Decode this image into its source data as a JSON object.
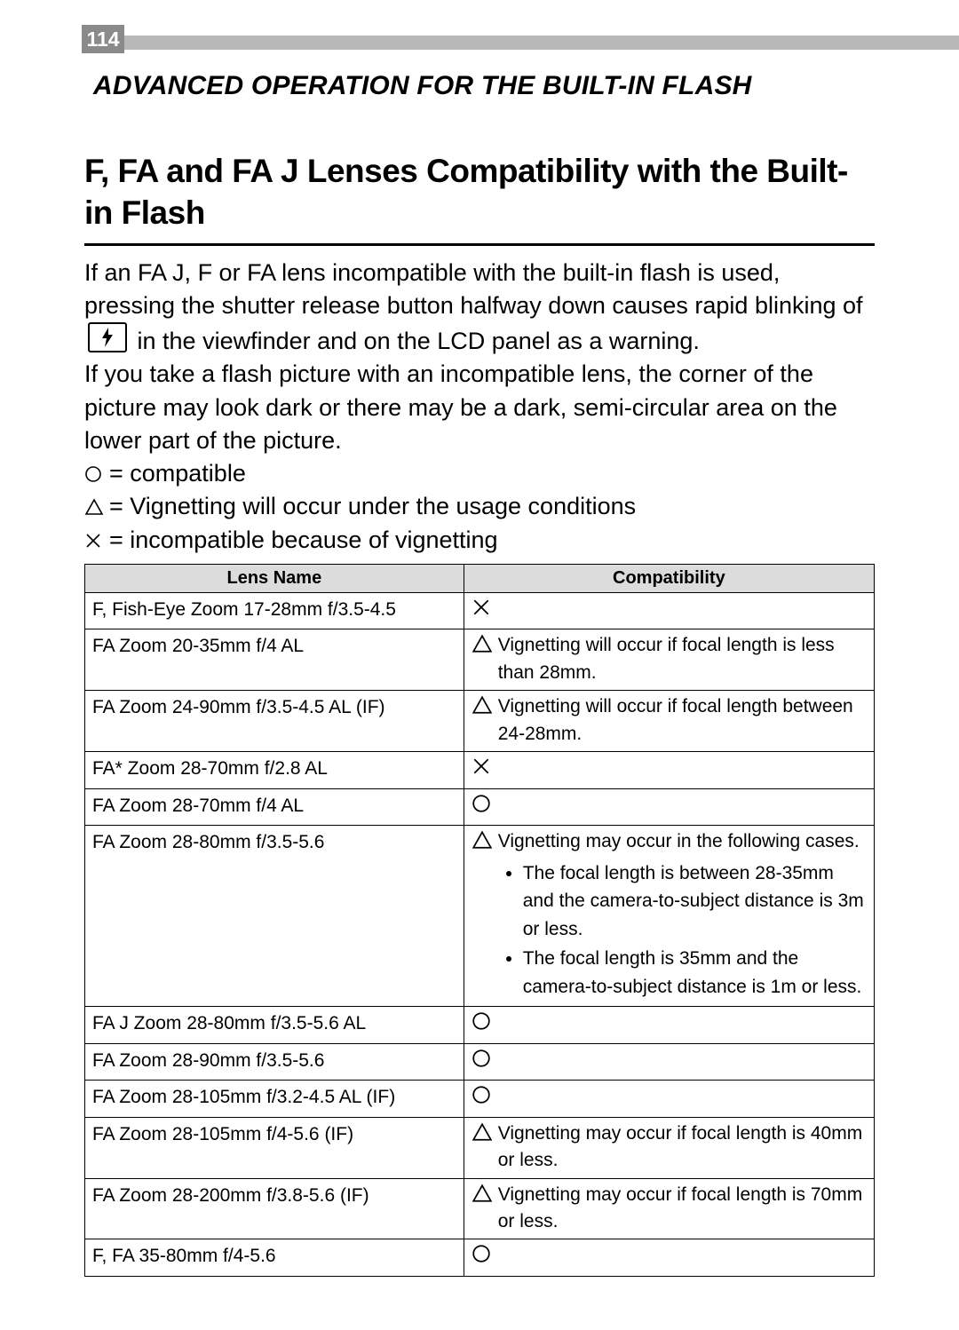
{
  "page_number": "114",
  "section_title": "ADVANCED OPERATION FOR THE BUILT-IN FLASH",
  "main_heading": "F, FA and FA J Lenses Compatibility with the Built-in Flash",
  "para1_before": "If an FA J, F or FA lens incompatible with the built-in flash is used, pressing the shutter release button halfway down causes rapid blinking of ",
  "para1_after": " in the viewfinder and on the LCD panel as a warning.",
  "para2": "If you take a flash picture with an incompatible lens, the corner of the picture may look dark or there may be a dark, semi-circular area on the lower part of the picture.",
  "legend": {
    "circle": " = compatible",
    "triangle": " = Vignetting will occur under the usage conditions",
    "cross": " = incompatible because of vignetting"
  },
  "table": {
    "headers": {
      "lens": "Lens Name",
      "compat": "Compatibility"
    },
    "rows": [
      {
        "lens": "F, Fish-Eye Zoom 17-28mm f/3.5-4.5",
        "symbol": "cross",
        "note": ""
      },
      {
        "lens": "FA Zoom 20-35mm f/4 AL",
        "symbol": "triangle",
        "note": "Vignetting will occur if focal length is less than 28mm."
      },
      {
        "lens": "FA Zoom 24-90mm f/3.5-4.5 AL (IF)",
        "symbol": "triangle",
        "note": "Vignetting will occur if focal length between 24-28mm."
      },
      {
        "lens": "FA* Zoom 28-70mm f/2.8 AL",
        "symbol": "cross",
        "note": ""
      },
      {
        "lens": "FA Zoom 28-70mm f/4 AL",
        "symbol": "circle",
        "note": ""
      },
      {
        "lens": "FA Zoom 28-80mm f/3.5-5.6",
        "symbol": "triangle",
        "note": "Vignetting may occur in the following cases.",
        "bullets": [
          "The focal length is between 28-35mm and the camera-to-subject distance is 3m or less.",
          "The focal length is 35mm and the camera-to-subject distance is 1m or less."
        ]
      },
      {
        "lens": "FA J Zoom 28-80mm f/3.5-5.6 AL",
        "symbol": "circle",
        "note": ""
      },
      {
        "lens": "FA Zoom 28-90mm f/3.5-5.6",
        "symbol": "circle",
        "note": ""
      },
      {
        "lens": "FA Zoom 28-105mm f/3.2-4.5 AL (IF)",
        "symbol": "circle",
        "note": ""
      },
      {
        "lens": "FA Zoom 28-105mm f/4-5.6 (IF)",
        "symbol": "triangle",
        "note": "Vignetting may occur if focal length is 40mm or less."
      },
      {
        "lens": "FA Zoom 28-200mm f/3.8-5.6 (IF)",
        "symbol": "triangle",
        "note": "Vignetting may occur if focal length is 70mm or less."
      },
      {
        "lens": "F, FA 35-80mm f/4-5.6",
        "symbol": "circle",
        "note": ""
      }
    ]
  },
  "colors": {
    "page_number_bg": "#8a8a8a",
    "header_bar": "#b8b8b8",
    "table_header_bg": "#dcdcdc",
    "text": "#000000",
    "bg": "#ffffff"
  },
  "symbols_svg": {
    "circle_size": 20,
    "triangle_size": 22,
    "cross_size": 20,
    "stroke": "#000000",
    "stroke_width": 1.6
  }
}
